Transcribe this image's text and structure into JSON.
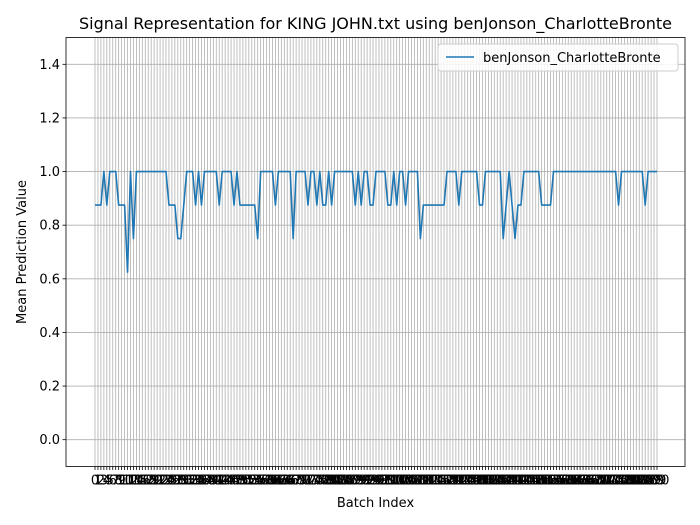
{
  "chart_data": {
    "type": "line",
    "title": "Signal Representation for KING JOHN.txt using benJonson_CharlotteBronte",
    "xlabel": "Batch Index",
    "ylabel": "Mean Prediction Value",
    "ylim": [
      -0.1,
      1.5
    ],
    "yticks": [
      0.0,
      0.2,
      0.4,
      0.6,
      0.8,
      1.0,
      1.2,
      1.4
    ],
    "ytick_labels": [
      "0.0",
      "0.2",
      "0.4",
      "0.6",
      "0.8",
      "1.0",
      "1.2",
      "1.4"
    ],
    "grid": true,
    "legend_position": "top-right",
    "series": [
      {
        "name": "benJonson_CharlotteBronte",
        "color": "#1f77b4",
        "values": [
          0.875,
          0.875,
          0.875,
          1.0,
          0.875,
          1.0,
          1.0,
          1.0,
          0.875,
          0.875,
          0.875,
          0.625,
          1.0,
          0.75,
          1.0,
          1.0,
          1.0,
          1.0,
          1.0,
          1.0,
          1.0,
          1.0,
          1.0,
          1.0,
          1.0,
          0.875,
          0.875,
          0.875,
          0.75,
          0.75,
          0.875,
          1.0,
          1.0,
          1.0,
          0.875,
          1.0,
          0.875,
          1.0,
          1.0,
          1.0,
          1.0,
          1.0,
          0.875,
          1.0,
          1.0,
          1.0,
          1.0,
          0.875,
          1.0,
          0.875,
          0.875,
          0.875,
          0.875,
          0.875,
          0.875,
          0.75,
          1.0,
          1.0,
          1.0,
          1.0,
          1.0,
          0.875,
          1.0,
          1.0,
          1.0,
          1.0,
          1.0,
          0.75,
          1.0,
          1.0,
          1.0,
          1.0,
          0.875,
          1.0,
          1.0,
          0.875,
          1.0,
          0.875,
          0.875,
          1.0,
          0.875,
          1.0,
          1.0,
          1.0,
          1.0,
          1.0,
          1.0,
          1.0,
          0.875,
          1.0,
          0.875,
          1.0,
          1.0,
          0.875,
          0.875,
          1.0,
          1.0,
          1.0,
          1.0,
          0.875,
          0.875,
          1.0,
          0.875,
          1.0,
          1.0,
          0.875,
          1.0,
          1.0,
          1.0,
          1.0,
          0.75,
          0.875,
          0.875,
          0.875,
          0.875,
          0.875,
          0.875,
          0.875,
          0.875,
          1.0,
          1.0,
          1.0,
          1.0,
          0.875,
          1.0,
          1.0,
          1.0,
          1.0,
          1.0,
          1.0,
          0.875,
          0.875,
          1.0,
          1.0,
          1.0,
          1.0,
          1.0,
          1.0,
          0.75,
          0.875,
          1.0,
          0.875,
          0.75,
          0.875,
          0.875,
          1.0,
          1.0,
          1.0,
          1.0,
          1.0,
          1.0,
          0.875,
          0.875,
          0.875,
          0.875,
          1.0,
          1.0,
          1.0,
          1.0,
          1.0,
          1.0,
          1.0,
          1.0,
          1.0,
          1.0,
          1.0,
          1.0,
          1.0,
          1.0,
          1.0,
          1.0,
          1.0,
          1.0,
          1.0,
          1.0,
          1.0,
          1.0,
          0.875,
          1.0,
          1.0,
          1.0,
          1.0,
          1.0,
          1.0,
          1.0,
          1.0,
          0.875,
          1.0,
          1.0,
          1.0,
          1.0
        ]
      }
    ]
  }
}
